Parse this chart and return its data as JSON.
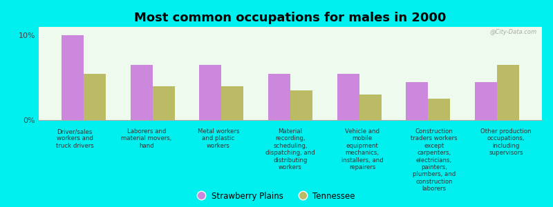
{
  "title": "Most common occupations for males in 2000",
  "background_color": "#00EFEF",
  "plot_bg_color": "#EEFAEE",
  "categories": [
    "Driver/sales\nworkers and\ntruck drivers",
    "Laborers and\nmaterial movers,\nhand",
    "Metal workers\nand plastic\nworkers",
    "Material\nrecording,\nscheduling,\ndispatching, and\ndistributing\nworkers",
    "Vehicle and\nmobile\nequipment\nmechanics,\ninstallers, and\nrepairers",
    "Construction\ntraders workers\nexcept\ncarpenters,\nelectricians,\npainters,\nplumbers, and\nconstruction\nlaborers",
    "Other production\noccupations,\nincluding\nsupervisors"
  ],
  "strawberry_plains": [
    10.0,
    6.5,
    6.5,
    5.5,
    5.5,
    4.5,
    4.5
  ],
  "tennessee": [
    5.5,
    4.0,
    4.0,
    3.5,
    3.0,
    2.5,
    6.5
  ],
  "sp_color": "#CC88DD",
  "tn_color": "#BBBB66",
  "ylim": [
    0,
    11
  ],
  "yticks": [
    0,
    10
  ],
  "yticklabels": [
    "0%",
    "10%"
  ],
  "legend_labels": [
    "Strawberry Plains",
    "Tennessee"
  ],
  "watermark": "@City-Data.com"
}
